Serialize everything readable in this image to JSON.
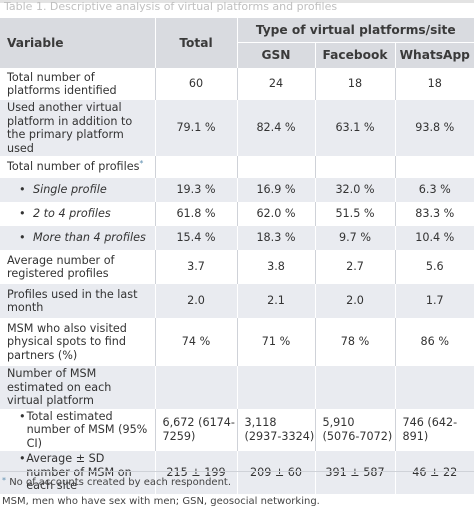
{
  "caption": "Table 1. Descriptive analysis of virtual platforms and profiles",
  "header": {
    "variable": "Variable",
    "total": "Total",
    "group": "Type of virtual platforms/site",
    "gsn": "GSN",
    "facebook": "Facebook",
    "whatsapp": "WhatsApp"
  },
  "rows": {
    "r1": {
      "label": "Total number of platforms identified",
      "total": "60",
      "gsn": "24",
      "facebook": "18",
      "whatsapp": "18"
    },
    "r2": {
      "label": "Used another virtual platform in addition to the primary platform used",
      "total": "79.1 %",
      "gsn": "82.4 %",
      "facebook": "63.1 %",
      "whatsapp": "93.8 %"
    },
    "r3": {
      "label": "Total number of profiles",
      "marker": "*"
    },
    "r4": {
      "label": "Single profile",
      "total": "19.3 %",
      "gsn": "16.9 %",
      "facebook": "32.0 %",
      "whatsapp": "6.3 %"
    },
    "r5": {
      "label": "2 to 4 profiles",
      "total": "61.8 %",
      "gsn": "62.0 %",
      "facebook": "51.5 %",
      "whatsapp": "83.3 %"
    },
    "r6": {
      "label": "More than 4 profiles",
      "total": "15.4 %",
      "gsn": "18.3 %",
      "facebook": "9.7 %",
      "whatsapp": "10.4 %"
    },
    "r7": {
      "label": "Average number of registered profiles",
      "total": "3.7",
      "gsn": "3.8",
      "facebook": "2.7",
      "whatsapp": "5.6"
    },
    "r8": {
      "label": "Profiles used in the last month",
      "total": "2.0",
      "gsn": "2.1",
      "facebook": "2.0",
      "whatsapp": "1.7"
    },
    "r9": {
      "label": "MSM who also visited physical spots to find partners (%)",
      "total": "74 %",
      "gsn": "71 %",
      "facebook": "78 %",
      "whatsapp": "86 %"
    },
    "r10": {
      "label": "Number of MSM estimated on each virtual platform"
    },
    "r11": {
      "label": "Total estimated number of MSM (95% CI)",
      "total": "6,672 (6174-7259)",
      "gsn": "3,118 (2937-3324)",
      "facebook": "5,910 (5076-7072)",
      "whatsapp": "746 (642-891)"
    },
    "r12": {
      "label": "Average ± SD number of MSM on each site",
      "total": "215 ± 199",
      "gsn": "209 ± 60",
      "facebook": "391 ± 587",
      "whatsapp": "46 ± 22"
    }
  },
  "footnotes": {
    "note1_marker": "*",
    "note1": "No of accounts created by each respondent.",
    "note2": "MSM, men who have sex with men; GSN, geosocial networking."
  }
}
